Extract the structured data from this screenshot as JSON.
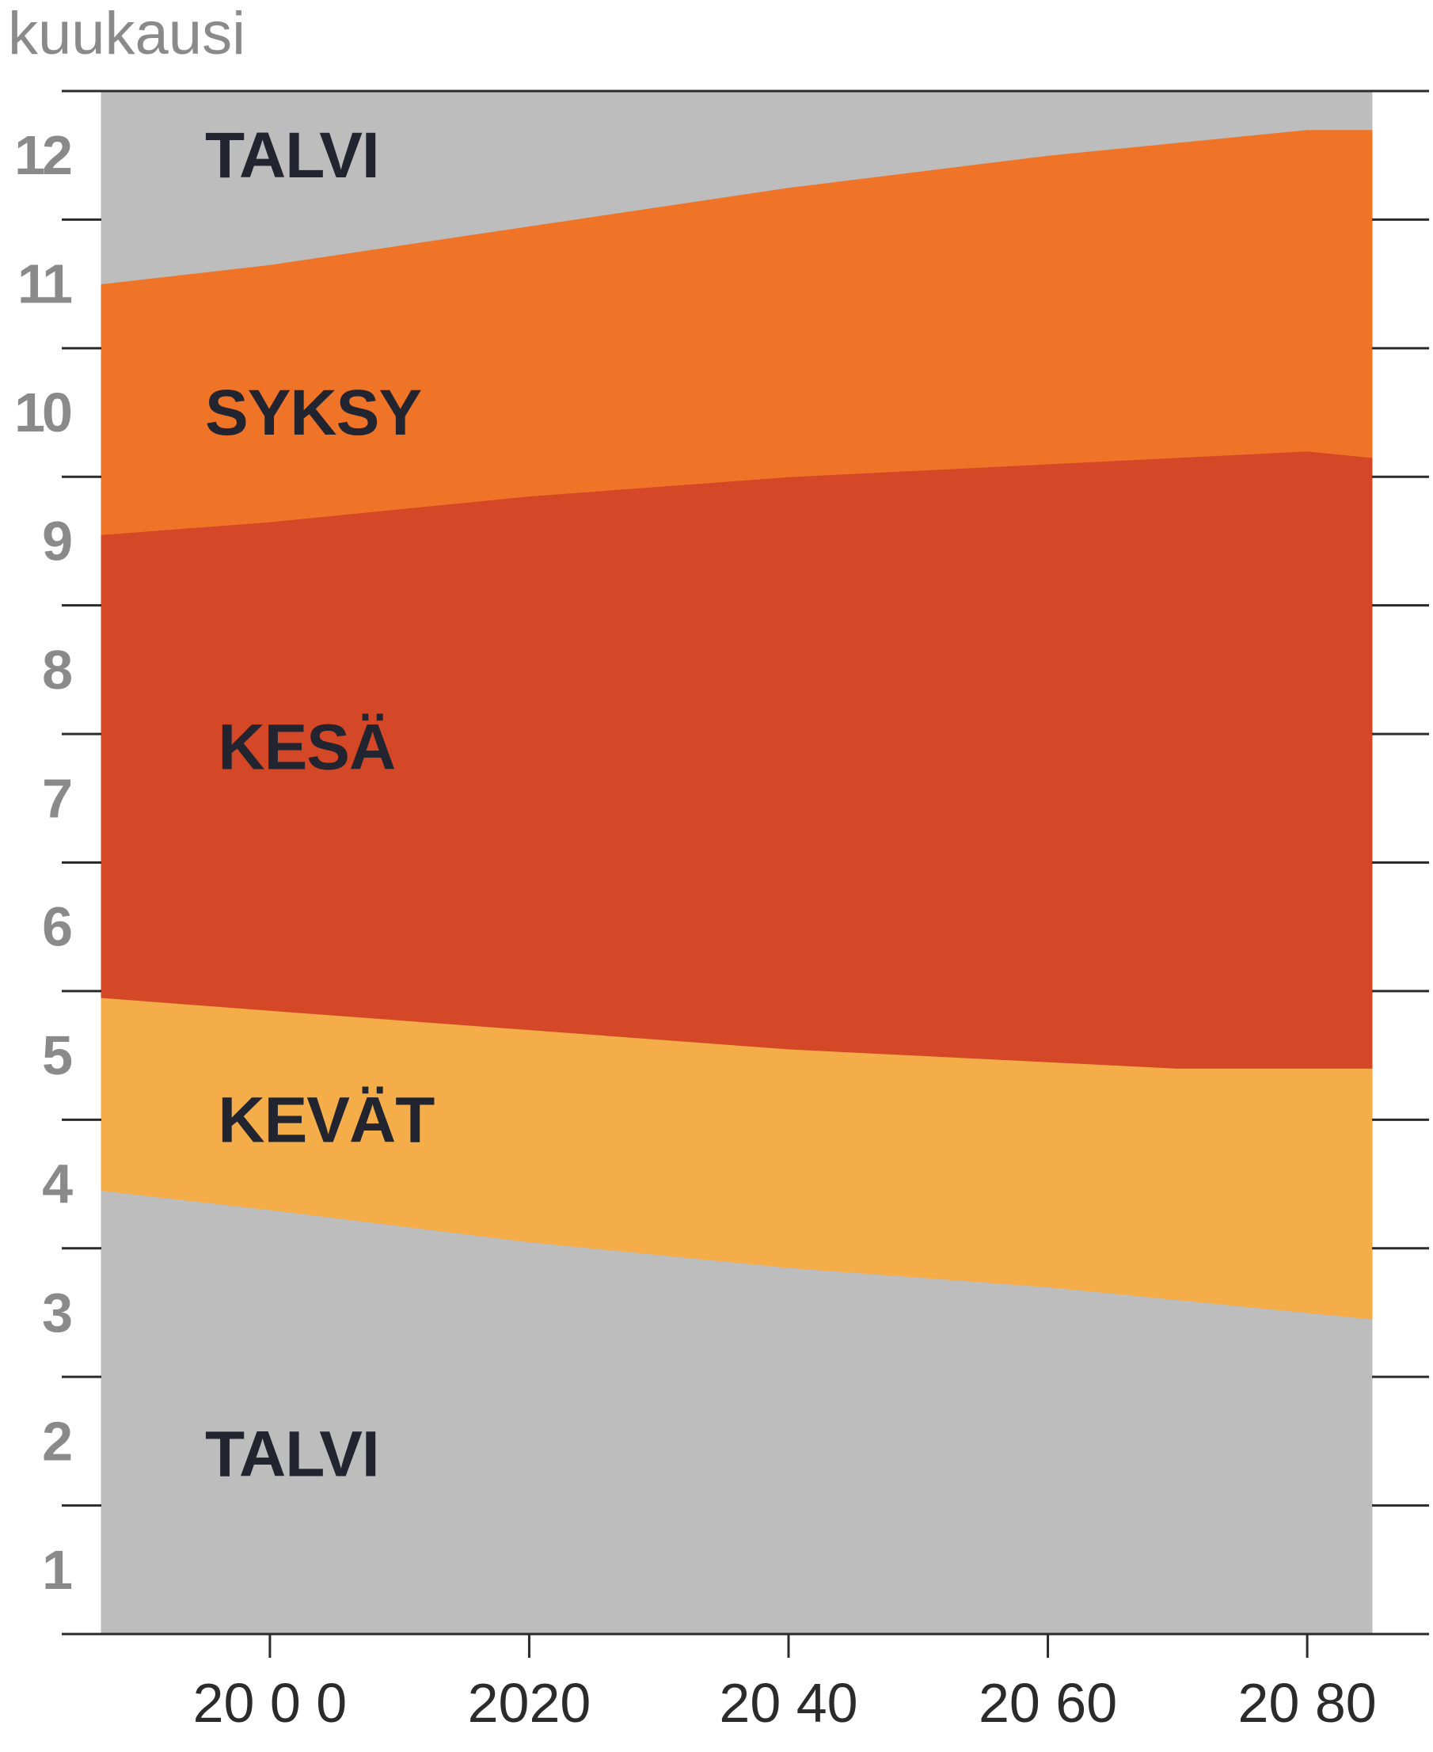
{
  "chart_data": {
    "type": "area",
    "title": "",
    "ylabel": "kuukausi",
    "xlabel": "",
    "x": [
      1987,
      2000,
      2020,
      2040,
      2060,
      2070,
      2080,
      2085
    ],
    "ylim": [
      0,
      12
    ],
    "xlim": [
      1987,
      2085
    ],
    "y_ticks": [
      1,
      2,
      3,
      4,
      5,
      6,
      7,
      8,
      9,
      10,
      11,
      12
    ],
    "x_ticks": [
      2000,
      2020,
      2040,
      2060,
      2080
    ],
    "x_tick_labels": [
      "20 0 0",
      "2020",
      "20 40",
      "20 60",
      "20 80"
    ],
    "grid": false,
    "boundaries": [
      {
        "between": [
          "TALVI",
          "KEVÄT"
        ],
        "values": [
          3.45,
          3.3,
          3.05,
          2.85,
          2.7,
          2.6,
          2.5,
          2.45
        ]
      },
      {
        "between": [
          "KEVÄT",
          "KESÄ"
        ],
        "values": [
          4.95,
          4.85,
          4.7,
          4.55,
          4.45,
          4.4,
          4.4,
          4.4
        ]
      },
      {
        "between": [
          "KESÄ",
          "SYKSY"
        ],
        "values": [
          8.55,
          8.65,
          8.85,
          9.0,
          9.1,
          9.15,
          9.2,
          9.15
        ]
      },
      {
        "between": [
          "SYKSY",
          "TALVI"
        ],
        "values": [
          10.5,
          10.65,
          10.95,
          11.25,
          11.5,
          11.6,
          11.7,
          11.7
        ]
      }
    ],
    "bands": [
      {
        "name": "TALVI",
        "color": "#bcbdbc",
        "from": "bottom",
        "to": 0,
        "label_pos": [
          1995,
          1.4
        ]
      },
      {
        "name": "KEVÄT",
        "color": "#f5ad4a",
        "from": 0,
        "to": 1,
        "label_pos": [
          1996,
          4.0
        ]
      },
      {
        "name": "KESÄ",
        "color": "#d54827",
        "from": 1,
        "to": 2,
        "label_pos": [
          1996,
          6.9
        ]
      },
      {
        "name": "SYKSY",
        "color": "#f07428",
        "from": 2,
        "to": 3,
        "label_pos": [
          1995,
          9.5
        ]
      },
      {
        "name": "TALVI",
        "color": "#bcbdbc",
        "from": 3,
        "to": "top",
        "label_pos": [
          1995,
          11.5
        ]
      }
    ],
    "label_color": "#222530",
    "axis_color": "#2b2b2b"
  }
}
